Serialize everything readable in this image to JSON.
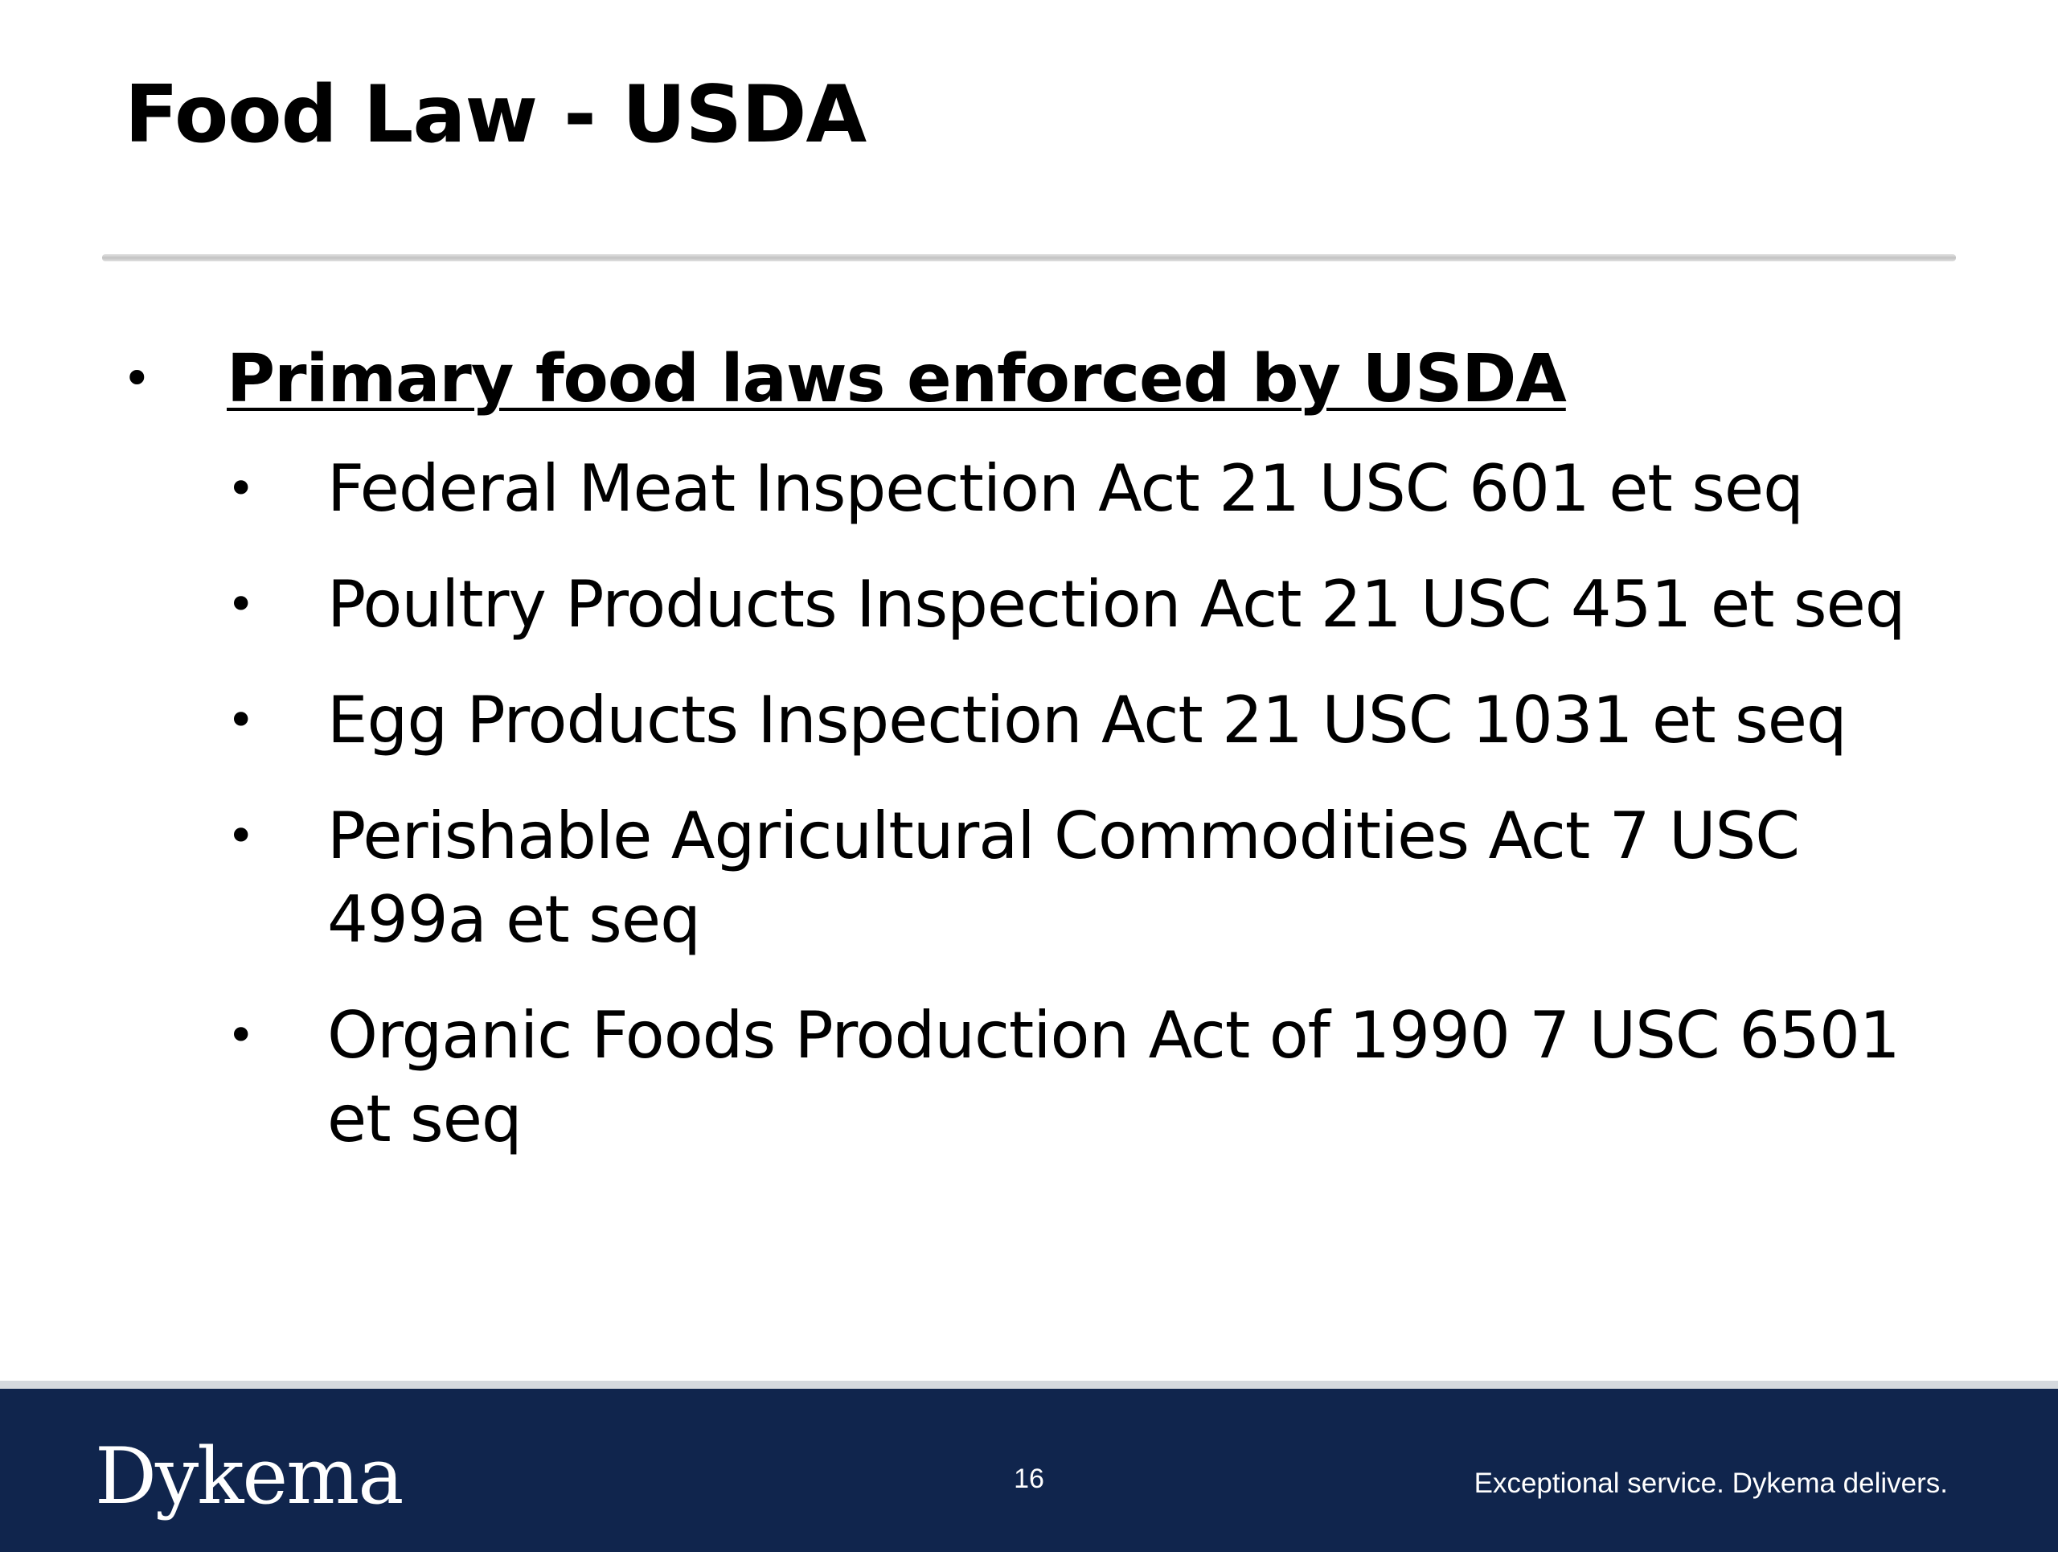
{
  "slide": {
    "title": "Food Law - USDA",
    "main_bullet": "Primary food laws enforced by USDA",
    "sub_bullets": [
      "Federal Meat Inspection Act 21 USC 601 et seq",
      "Poultry Products Inspection Act 21 USC 451 et seq",
      "Egg Products Inspection Act 21 USC 1031 et seq",
      "Perishable Agricultural Commodities Act 7 USC 499a et seq",
      "Organic Foods Production Act of 1990 7 USC 6501 et seq"
    ],
    "bullet_glyph": "•"
  },
  "footer": {
    "logo_text": "Dykema",
    "page_number": "16",
    "tagline": "Exceptional service. Dykema delivers."
  },
  "colors": {
    "footer_background": "#10254d",
    "footer_text": "#ffffff",
    "title_rule": "#c8c8c8",
    "text": "#000000"
  }
}
